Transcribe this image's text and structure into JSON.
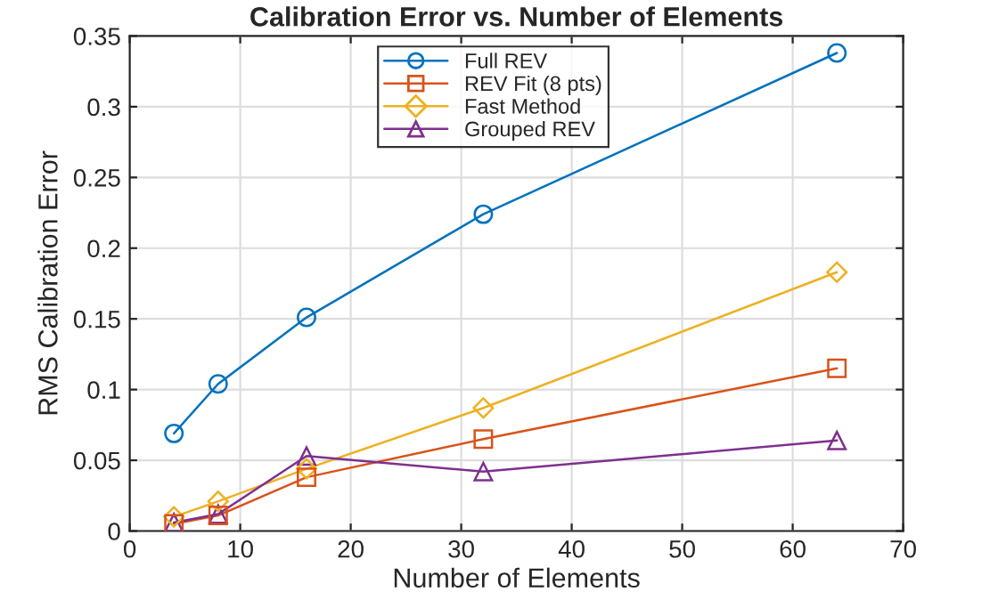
{
  "chart_data": {
    "type": "line",
    "title": "Calibration Error vs. Number of Elements",
    "xlabel": "Number of Elements",
    "ylabel": "RMS Calibration Error",
    "x": [
      4,
      8,
      16,
      32,
      64
    ],
    "series": [
      {
        "name": "Full REV",
        "color": "#0072bd",
        "marker": "circle",
        "values": [
          0.069,
          0.104,
          0.151,
          0.224,
          0.338
        ]
      },
      {
        "name": "REV Fit (8 pts)",
        "color": "#d95319",
        "marker": "square",
        "values": [
          0.005,
          0.011,
          0.038,
          0.065,
          0.115
        ]
      },
      {
        "name": "Fast Method",
        "color": "#edb120",
        "marker": "diamond",
        "values": [
          0.01,
          0.021,
          0.044,
          0.087,
          0.183
        ]
      },
      {
        "name": "Grouped REV",
        "color": "#7e2f8e",
        "marker": "triangle",
        "values": [
          0.006,
          0.012,
          0.053,
          0.042,
          0.064
        ]
      }
    ],
    "xlim": [
      0,
      70
    ],
    "xticks": [
      0,
      10,
      20,
      30,
      40,
      50,
      60,
      70
    ],
    "ylim": [
      0,
      0.35
    ],
    "yticks": [
      0,
      0.05,
      0.1,
      0.15,
      0.2,
      0.25,
      0.3,
      0.35
    ],
    "grid": true,
    "legend": "top",
    "line_style": "solid"
  }
}
